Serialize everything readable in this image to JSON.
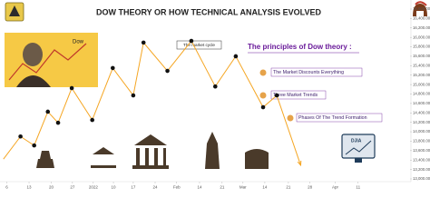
{
  "chart_data": {
    "type": "line",
    "title": "DOW THEORY OR HOW TECHNICAL ANALYSIS EVOLVED",
    "annotations": [
      "Dow",
      "The market cycle",
      "The principles of Dow theory :",
      "The Market Discounts Everything",
      "Three Market Trends",
      "Phases Of The Trend Formation",
      "DJIA"
    ],
    "x": [
      1,
      6,
      10,
      14,
      17,
      21,
      27,
      33,
      39,
      42,
      49,
      56,
      63,
      69,
      77,
      81,
      88
    ],
    "series": [
      {
        "color": "#f5a623",
        "values": [
          13420,
          13900,
          13710,
          14425,
          14190,
          14925,
          14250,
          15350,
          14770,
          15890,
          15290,
          15925,
          14960,
          15600,
          14520,
          14770,
          13290
        ]
      }
    ],
    "xlim": [
      0,
      120
    ],
    "ylim": [
      13000,
      16600
    ],
    "xticks": [
      {
        "value": 2,
        "label": "6"
      },
      {
        "value": 8.5,
        "label": "13"
      },
      {
        "value": 15,
        "label": "20"
      },
      {
        "value": 21.2,
        "label": "27"
      },
      {
        "value": 27.3,
        "label": "2022"
      },
      {
        "value": 33.2,
        "label": "10"
      },
      {
        "value": 39,
        "label": "17"
      },
      {
        "value": 45.4,
        "label": "24"
      },
      {
        "value": 51.7,
        "label": "Feb"
      },
      {
        "value": 58.4,
        "label": "14"
      },
      {
        "value": 65,
        "label": "21"
      },
      {
        "value": 71.1,
        "label": "Mar"
      },
      {
        "value": 77.5,
        "label": "14"
      },
      {
        "value": 84.4,
        "label": "21"
      },
      {
        "value": 90.7,
        "label": "28"
      },
      {
        "value": 98.1,
        "label": "Apr"
      },
      {
        "value": 104.8,
        "label": "11"
      }
    ],
    "yticks": [
      {
        "value": 13000,
        "label": "13,000.00"
      },
      {
        "value": 13200,
        "label": "13,200.00"
      },
      {
        "value": 13400,
        "label": "13,400.00"
      },
      {
        "value": 13600,
        "label": "13,600.00"
      },
      {
        "value": 13800,
        "label": "13,800.00"
      },
      {
        "value": 14000,
        "label": "14,000.00"
      },
      {
        "value": 14200,
        "label": "14,200.00"
      },
      {
        "value": 14400,
        "label": "14,400.00"
      },
      {
        "value": 14600,
        "label": "14,600.00"
      },
      {
        "value": 14800,
        "label": "14,800.00"
      },
      {
        "value": 15000,
        "label": "15,000.00"
      },
      {
        "value": 15200,
        "label": "15,200.00"
      },
      {
        "value": 15400,
        "label": "15,400.00"
      },
      {
        "value": 15600,
        "label": "15,600.00"
      },
      {
        "value": 15800,
        "label": "15,800.00"
      },
      {
        "value": 16000,
        "label": "16,000.00"
      },
      {
        "value": 16200,
        "label": "16,200.00"
      },
      {
        "value": 16400,
        "label": "16,400.00"
      },
      {
        "value": 16600,
        "label": "16,600.00"
      }
    ],
    "grid": false
  }
}
